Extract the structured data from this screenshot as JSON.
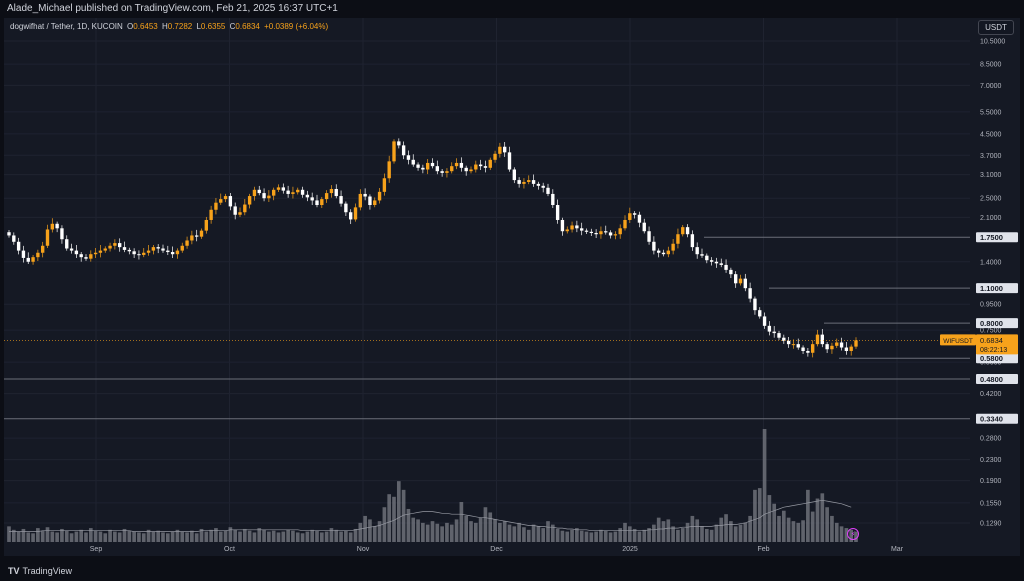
{
  "header": {
    "publish_line": "Alade_Michael published on TradingView.com, Feb 21, 2025 16:37 UTC+1"
  },
  "legend": {
    "symbol": "dogwifhat / Tether, 1D, KUCOIN",
    "open_label": "O",
    "open": "0.6453",
    "high_label": "H",
    "high": "0.7282",
    "low_label": "L",
    "low": "0.6355",
    "close_label": "C",
    "close": "0.6834",
    "change": "+0.0389 (+6.04%)"
  },
  "unit_button": "USDT",
  "footer": {
    "brand": "TradingView"
  },
  "colors": {
    "background": "#151924",
    "up": "#f7a21b",
    "down": "#ffffff",
    "volume": "#7a7c84",
    "level_line": "#6b6e78",
    "price_badge": "#f7a21b"
  },
  "chart_data": {
    "type": "candlestick",
    "scale": "log",
    "grid": true,
    "price_axis_ticks": [
      "10.5000",
      "8.5000",
      "7.0000",
      "5.5000",
      "4.5000",
      "3.7000",
      "3.1000",
      "2.5000",
      "2.1000",
      "1.4000",
      "0.9500",
      "0.7500",
      "0.5600",
      "0.4200",
      "0.2800",
      "0.2300",
      "0.1900",
      "0.1550",
      "0.1290"
    ],
    "time_axis_ticks": [
      "Sep",
      "Oct",
      "Nov",
      "Dec",
      "2025",
      "Feb",
      "Mar"
    ],
    "horizontal_levels": [
      {
        "label": "1.7500",
        "value": 1.75
      },
      {
        "label": "1.1000",
        "value": 1.1
      },
      {
        "label": "0.8000",
        "value": 0.8
      },
      {
        "label": "0.5800",
        "value": 0.58
      },
      {
        "label": "0.4800",
        "value": 0.48
      },
      {
        "label": "0.3340",
        "value": 0.334
      }
    ],
    "current_price": {
      "symbol": "WIFUSDT",
      "value": "0.6834",
      "countdown": "08:22:13"
    },
    "closes": [
      1.78,
      1.68,
      1.55,
      1.45,
      1.4,
      1.46,
      1.52,
      1.62,
      1.88,
      1.98,
      1.9,
      1.72,
      1.58,
      1.55,
      1.5,
      1.46,
      1.44,
      1.5,
      1.52,
      1.55,
      1.58,
      1.62,
      1.66,
      1.6,
      1.56,
      1.54,
      1.5,
      1.49,
      1.52,
      1.55,
      1.6,
      1.58,
      1.55,
      1.53,
      1.5,
      1.55,
      1.62,
      1.7,
      1.78,
      1.76,
      1.86,
      2.05,
      2.25,
      2.4,
      2.48,
      2.55,
      2.32,
      2.15,
      2.2,
      2.36,
      2.55,
      2.7,
      2.62,
      2.5,
      2.56,
      2.7,
      2.76,
      2.68,
      2.6,
      2.64,
      2.7,
      2.58,
      2.52,
      2.45,
      2.35,
      2.48,
      2.62,
      2.72,
      2.55,
      2.38,
      2.2,
      2.06,
      2.3,
      2.6,
      2.54,
      2.35,
      2.45,
      2.65,
      3.0,
      3.5,
      4.2,
      4.05,
      3.7,
      3.55,
      3.4,
      3.3,
      3.25,
      3.45,
      3.35,
      3.2,
      3.15,
      3.2,
      3.35,
      3.45,
      3.3,
      3.2,
      3.25,
      3.4,
      3.35,
      3.3,
      3.55,
      3.75,
      4.0,
      3.8,
      3.25,
      2.95,
      2.85,
      2.9,
      2.95,
      2.85,
      2.8,
      2.75,
      2.6,
      2.35,
      2.05,
      1.85,
      1.88,
      1.95,
      1.9,
      1.86,
      1.84,
      1.82,
      1.8,
      1.85,
      1.83,
      1.78,
      1.8,
      1.9,
      2.05,
      2.18,
      2.15,
      2.0,
      1.85,
      1.68,
      1.55,
      1.52,
      1.5,
      1.55,
      1.65,
      1.8,
      1.92,
      1.8,
      1.6,
      1.5,
      1.48,
      1.42,
      1.4,
      1.38,
      1.36,
      1.3,
      1.25,
      1.15,
      1.2,
      1.1,
      1.0,
      0.9,
      0.85,
      0.78,
      0.74,
      0.73,
      0.7,
      0.68,
      0.66,
      0.66,
      0.64,
      0.62,
      0.61,
      0.66,
      0.72,
      0.66,
      0.63,
      0.65,
      0.67,
      0.64,
      0.62,
      0.6453,
      0.6834
    ],
    "volumes": [
      18,
      14,
      12,
      15,
      11,
      10,
      16,
      13,
      17,
      12,
      11,
      15,
      13,
      10,
      12,
      14,
      11,
      16,
      13,
      12,
      10,
      14,
      12,
      11,
      15,
      13,
      12,
      11,
      10,
      14,
      12,
      13,
      11,
      10,
      12,
      14,
      12,
      11,
      13,
      10,
      15,
      12,
      14,
      16,
      12,
      13,
      17,
      14,
      12,
      15,
      13,
      11,
      16,
      14,
      12,
      13,
      11,
      12,
      14,
      13,
      11,
      10,
      12,
      14,
      13,
      11,
      12,
      16,
      14,
      12,
      13,
      11,
      15,
      22,
      30,
      26,
      18,
      24,
      40,
      55,
      52,
      70,
      60,
      38,
      28,
      26,
      22,
      20,
      24,
      21,
      18,
      22,
      20,
      26,
      46,
      30,
      24,
      22,
      28,
      40,
      34,
      26,
      22,
      24,
      20,
      18,
      22,
      17,
      14,
      20,
      18,
      16,
      24,
      20,
      15,
      13,
      12,
      14,
      16,
      13,
      12,
      11,
      12,
      14,
      13,
      11,
      12,
      16,
      22,
      18,
      15,
      12,
      14,
      16,
      20,
      28,
      24,
      26,
      18,
      14,
      16,
      22,
      30,
      26,
      18,
      15,
      14,
      20,
      28,
      32,
      24,
      18,
      20,
      22,
      30,
      60,
      62,
      130,
      54,
      44,
      30,
      36,
      28,
      24,
      22,
      25,
      60,
      35,
      50,
      56,
      40,
      30,
      22,
      18,
      16,
      14,
      12,
      10
    ],
    "volume_ma": [
      12,
      12,
      12,
      12,
      12,
      12,
      12,
      13,
      13,
      13,
      13,
      13,
      13,
      13,
      13,
      13,
      13,
      13,
      13,
      13,
      13,
      13,
      13,
      13,
      13,
      13,
      12,
      12,
      12,
      12,
      12,
      12,
      12,
      12,
      12,
      12,
      12,
      12,
      12,
      12,
      13,
      13,
      13,
      13,
      13,
      13,
      14,
      14,
      14,
      14,
      14,
      14,
      14,
      14,
      14,
      14,
      14,
      14,
      14,
      14,
      14,
      13,
      13,
      13,
      13,
      13,
      13,
      13,
      13,
      13,
      13,
      13,
      14,
      15,
      16,
      17,
      18,
      19,
      21,
      23,
      25,
      28,
      31,
      32,
      33,
      34,
      35,
      35,
      35,
      34,
      33,
      33,
      32,
      32,
      32,
      31,
      30,
      29,
      28,
      28,
      27,
      26,
      25,
      24,
      23,
      22,
      21,
      20,
      19,
      19,
      18,
      18,
      17,
      17,
      16,
      16,
      15,
      15,
      14,
      14,
      14,
      13,
      13,
      13,
      13,
      13,
      13,
      13,
      13,
      13,
      13,
      13,
      13,
      14,
      14,
      15,
      15,
      16,
      16,
      16,
      17,
      17,
      18,
      18,
      18,
      18,
      18,
      19,
      19,
      20,
      20,
      20,
      21,
      22,
      24,
      26,
      28,
      32,
      34,
      36,
      38,
      40,
      41,
      42,
      43,
      44,
      45,
      46,
      47,
      48,
      47,
      46,
      45,
      44,
      42,
      40
    ]
  }
}
